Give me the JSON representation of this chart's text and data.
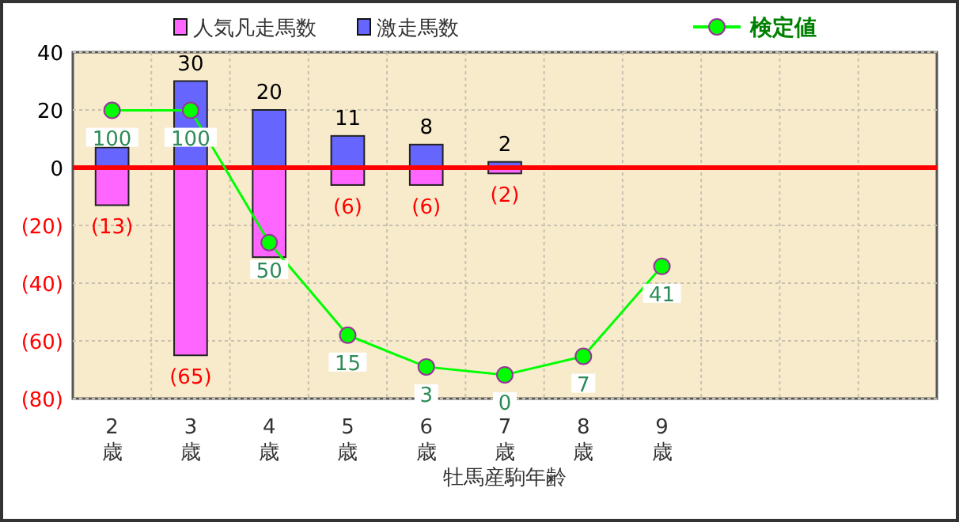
{
  "chart_data": {
    "type": "bar",
    "stacked": true,
    "xlabel": "牡馬産駒年齢",
    "categories": [
      "2歳",
      "3歳",
      "4歳",
      "5歳",
      "6歳",
      "7歳",
      "8歳",
      "9歳",
      null,
      null,
      null
    ],
    "series": [
      {
        "name": "人気凡走馬数",
        "color": "#ff66ff",
        "values": [
          -13,
          -65,
          -31,
          -6,
          -6,
          -2,
          null,
          null,
          null,
          null,
          null
        ],
        "value_labels": [
          "(13)",
          "(65)",
          null,
          "(6)",
          "(6)",
          "(2)",
          null,
          null,
          null,
          null,
          null
        ]
      },
      {
        "name": "激走馬数",
        "color": "#6666ff",
        "values": [
          7,
          30,
          20,
          11,
          8,
          2,
          null,
          null,
          null,
          null,
          null
        ],
        "value_labels": [
          null,
          "30",
          "20",
          "11",
          "8",
          "2",
          null,
          null,
          null,
          null,
          null
        ]
      },
      {
        "name": "検定値",
        "type": "line",
        "axis": "y2",
        "color": "#00ff00",
        "marker": "circle",
        "values": [
          100,
          100,
          50,
          15,
          3,
          0,
          7,
          41,
          null,
          null,
          null
        ]
      }
    ],
    "y2lim": [
      -9,
      122
    ],
    "data_labels": true,
    "ylim": [
      -80,
      40
    ],
    "yticks": [
      40,
      20,
      0,
      {
        "value": -20,
        "label": "(20)"
      },
      {
        "value": -40,
        "label": "(40)"
      },
      {
        "value": -60,
        "label": "(60)"
      },
      {
        "value": -80,
        "label": "(80)"
      }
    ],
    "ref_lines": [
      {
        "axis": "y",
        "value": 0,
        "color": "#ff0000"
      }
    ],
    "grid": true,
    "legend": "top"
  }
}
